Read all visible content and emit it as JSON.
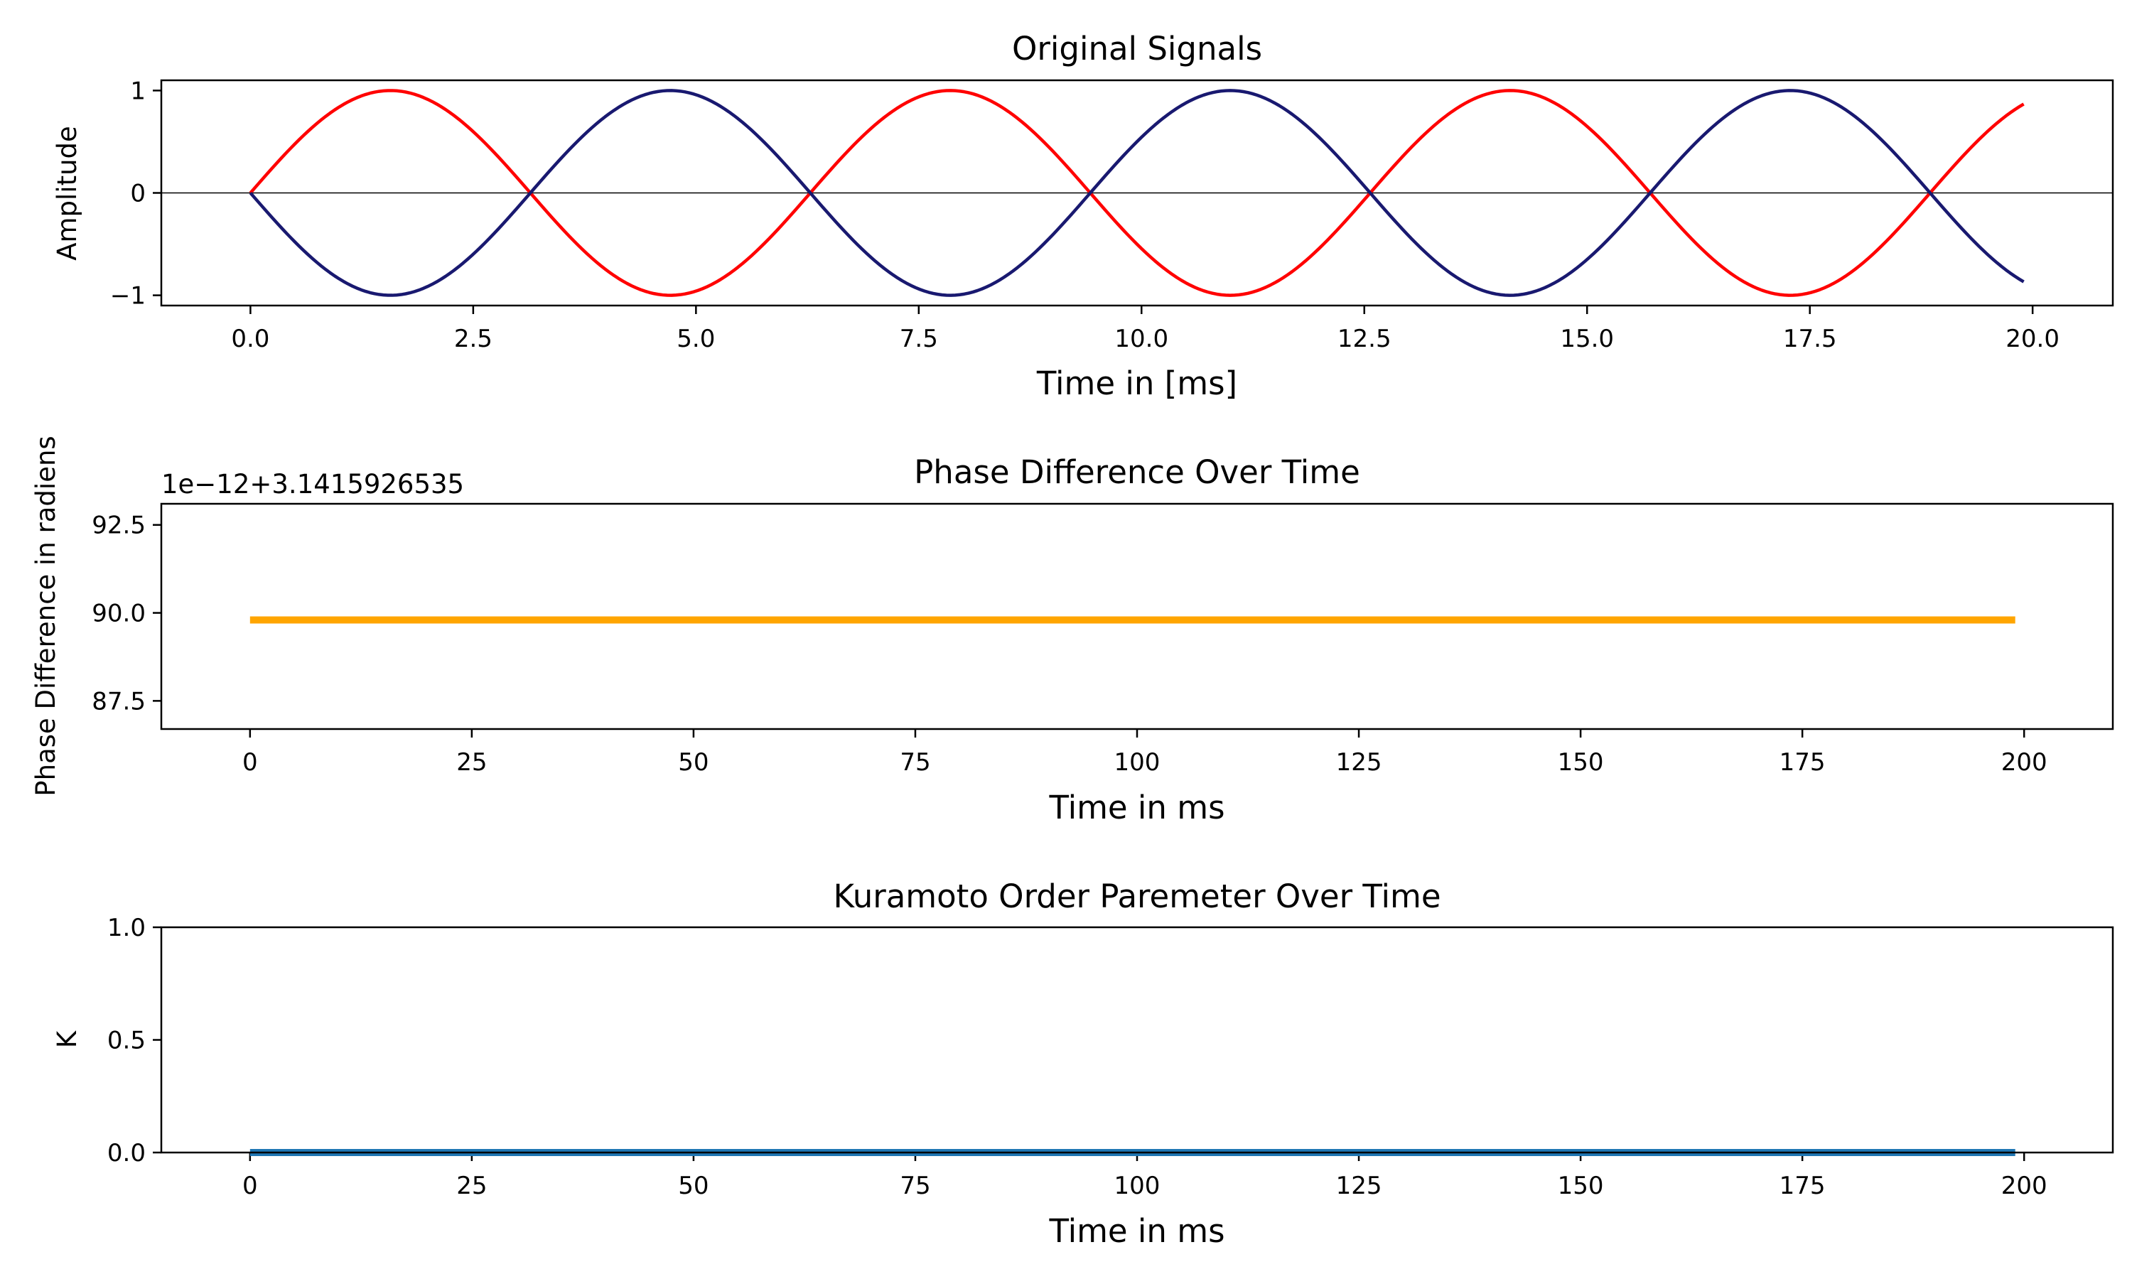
{
  "chart_data": [
    {
      "type": "line",
      "title": "Original Signals",
      "xlabel": "Time in [ms]",
      "ylabel": "Amplitude",
      "xlim": [
        -1,
        20.9
      ],
      "ylim": [
        -1.1,
        1.1
      ],
      "xticks": [
        0,
        2.5,
        5,
        7.5,
        10,
        12.5,
        15,
        17.5,
        20
      ],
      "xtick_labels": [
        "0.0",
        "2.5",
        "5.0",
        "7.5",
        "10.0",
        "12.5",
        "15.0",
        "17.5",
        "20.0"
      ],
      "yticks": [
        1,
        0,
        -1
      ],
      "ytick_labels": [
        "1",
        "0",
        "−1"
      ],
      "zero_line": true,
      "x_range": [
        0,
        19.9
      ],
      "series": [
        {
          "function": "sin(t)",
          "color": "#ff0000"
        },
        {
          "function": "-sin(t)",
          "color": "#191970"
        }
      ]
    },
    {
      "type": "line",
      "title": "Phase Difference Over Time",
      "xlabel": "Time in ms",
      "ylabel": "Phase Difference in radiens",
      "offset_label": "1e−12+3.1415926535",
      "xlim": [
        -10,
        210
      ],
      "ylim": [
        86.7,
        93.1
      ],
      "xticks": [
        0,
        25,
        50,
        75,
        100,
        125,
        150,
        175,
        200
      ],
      "xtick_labels": [
        "0",
        "25",
        "50",
        "75",
        "100",
        "125",
        "150",
        "175",
        "200"
      ],
      "yticks": [
        92.5,
        90.0,
        87.5
      ],
      "ytick_labels": [
        "92.5",
        "90.0",
        "87.5"
      ],
      "series": [
        {
          "x": [
            0,
            199
          ],
          "y": [
            89.8,
            89.8
          ],
          "color": "#ffa500"
        }
      ]
    },
    {
      "type": "line",
      "title": "Kuramoto Order Paremeter Over Time",
      "xlabel": "Time in ms",
      "ylabel": "K",
      "xlim": [
        -10,
        210
      ],
      "ylim": [
        0,
        1
      ],
      "xticks": [
        0,
        25,
        50,
        75,
        100,
        125,
        150,
        175,
        200
      ],
      "xtick_labels": [
        "0",
        "25",
        "50",
        "75",
        "100",
        "125",
        "150",
        "175",
        "200"
      ],
      "yticks": [
        1.0,
        0.5,
        0.0
      ],
      "ytick_labels": [
        "1.0",
        "0.5",
        "0.0"
      ],
      "series": [
        {
          "x": [
            0,
            199
          ],
          "y": [
            0.0,
            0.0
          ],
          "color": "#1f77b4"
        }
      ]
    }
  ]
}
